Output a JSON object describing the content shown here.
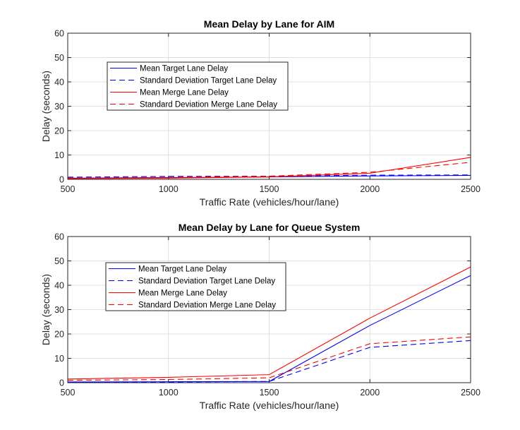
{
  "chart_data": [
    {
      "type": "line",
      "title": "Mean Delay by Lane for AIM",
      "xlabel": "Traffic Rate (vehicles/hour/lane)",
      "ylabel": "Delay (seconds)",
      "xlim": [
        500,
        2500
      ],
      "ylim": [
        0,
        60
      ],
      "xticks": [
        "500",
        "1000",
        "1500",
        "2000",
        "2500"
      ],
      "yticks": [
        "0",
        "10",
        "20",
        "30",
        "40",
        "50",
        "60"
      ],
      "grid": true,
      "legend_position": "upper-left",
      "x": [
        500,
        1000,
        1500,
        2000,
        2500
      ],
      "series": [
        {
          "name": "Mean Target Lane Delay",
          "color": "#0000ff",
          "dash": "solid",
          "values": [
            0.5,
            0.7,
            1.0,
            1.4,
            1.6
          ]
        },
        {
          "name": "Standard Deviation Target Lane Delay",
          "color": "#0000ff",
          "dash": "dashed",
          "values": [
            0.9,
            1.2,
            1.3,
            1.7,
            1.8
          ]
        },
        {
          "name": "Mean Merge Lane Delay",
          "color": "#ff0000",
          "dash": "solid",
          "values": [
            0.3,
            0.5,
            1.0,
            2.5,
            9.0
          ]
        },
        {
          "name": "Standard Deviation Merge Lane Delay",
          "color": "#ff0000",
          "dash": "dashed",
          "values": [
            0.6,
            0.8,
            1.3,
            2.9,
            7.0
          ]
        }
      ]
    },
    {
      "type": "line",
      "title": "Mean Delay by Lane for Queue System",
      "xlabel": "Traffic Rate (vehicles/hour/lane)",
      "ylabel": "Delay (seconds)",
      "xlim": [
        500,
        2500
      ],
      "ylim": [
        0,
        60
      ],
      "xticks": [
        "500",
        "1000",
        "1500",
        "2000",
        "2500"
      ],
      "yticks": [
        "0",
        "10",
        "20",
        "30",
        "40",
        "50",
        "60"
      ],
      "grid": true,
      "legend_position": "upper-left",
      "x": [
        500,
        1000,
        1500,
        2000,
        2500
      ],
      "series": [
        {
          "name": "Mean Target Lane Delay",
          "color": "#0000ff",
          "dash": "solid",
          "values": [
            0.3,
            0.4,
            0.5,
            23.5,
            44.0
          ]
        },
        {
          "name": "Standard Deviation Target Lane Delay",
          "color": "#0000ff",
          "dash": "dashed",
          "values": [
            0.2,
            0.3,
            0.5,
            14.5,
            17.3
          ]
        },
        {
          "name": "Mean Merge Lane Delay",
          "color": "#ff0000",
          "dash": "solid",
          "values": [
            1.5,
            2.2,
            3.3,
            26.5,
            47.5
          ]
        },
        {
          "name": "Standard Deviation Merge Lane Delay",
          "color": "#ff0000",
          "dash": "dashed",
          "values": [
            1.0,
            1.3,
            2.0,
            16.0,
            18.8
          ]
        }
      ]
    }
  ]
}
